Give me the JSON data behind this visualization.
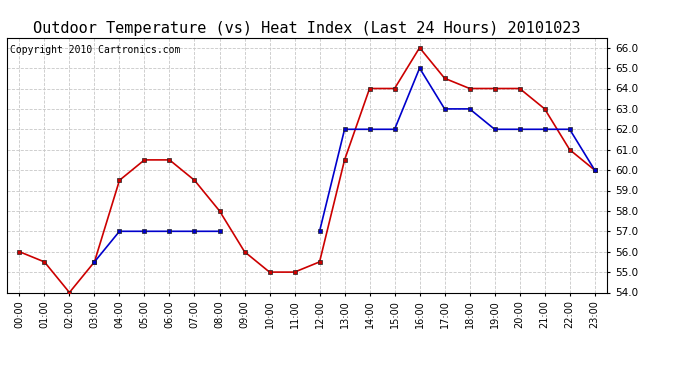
{
  "title": "Outdoor Temperature (vs) Heat Index (Last 24 Hours) 20101023",
  "copyright": "Copyright 2010 Cartronics.com",
  "x_labels": [
    "00:00",
    "01:00",
    "02:00",
    "03:00",
    "04:00",
    "05:00",
    "06:00",
    "07:00",
    "08:00",
    "09:00",
    "10:00",
    "11:00",
    "12:00",
    "13:00",
    "14:00",
    "15:00",
    "16:00",
    "17:00",
    "18:00",
    "19:00",
    "20:00",
    "21:00",
    "22:00",
    "23:00"
  ],
  "red_values": [
    56.0,
    55.5,
    54.0,
    55.5,
    59.5,
    60.5,
    60.5,
    59.5,
    58.0,
    56.0,
    55.0,
    55.0,
    55.5,
    60.5,
    64.0,
    64.0,
    66.0,
    64.5,
    64.0,
    64.0,
    64.0,
    63.0,
    61.0,
    60.0
  ],
  "blue_values": [
    null,
    null,
    null,
    55.5,
    57.0,
    57.0,
    57.0,
    57.0,
    57.0,
    null,
    null,
    null,
    57.0,
    62.0,
    62.0,
    62.0,
    65.0,
    63.0,
    63.0,
    62.0,
    62.0,
    62.0,
    62.0,
    60.0
  ],
  "ylim_min": 54.0,
  "ylim_max": 66.5,
  "yticks": [
    54.0,
    55.0,
    56.0,
    57.0,
    58.0,
    59.0,
    60.0,
    61.0,
    62.0,
    63.0,
    64.0,
    65.0,
    66.0
  ],
  "red_color": "#cc0000",
  "blue_color": "#0000cc",
  "bg_color": "#ffffff",
  "grid_color": "#c8c8c8",
  "title_fontsize": 11,
  "copyright_fontsize": 7
}
